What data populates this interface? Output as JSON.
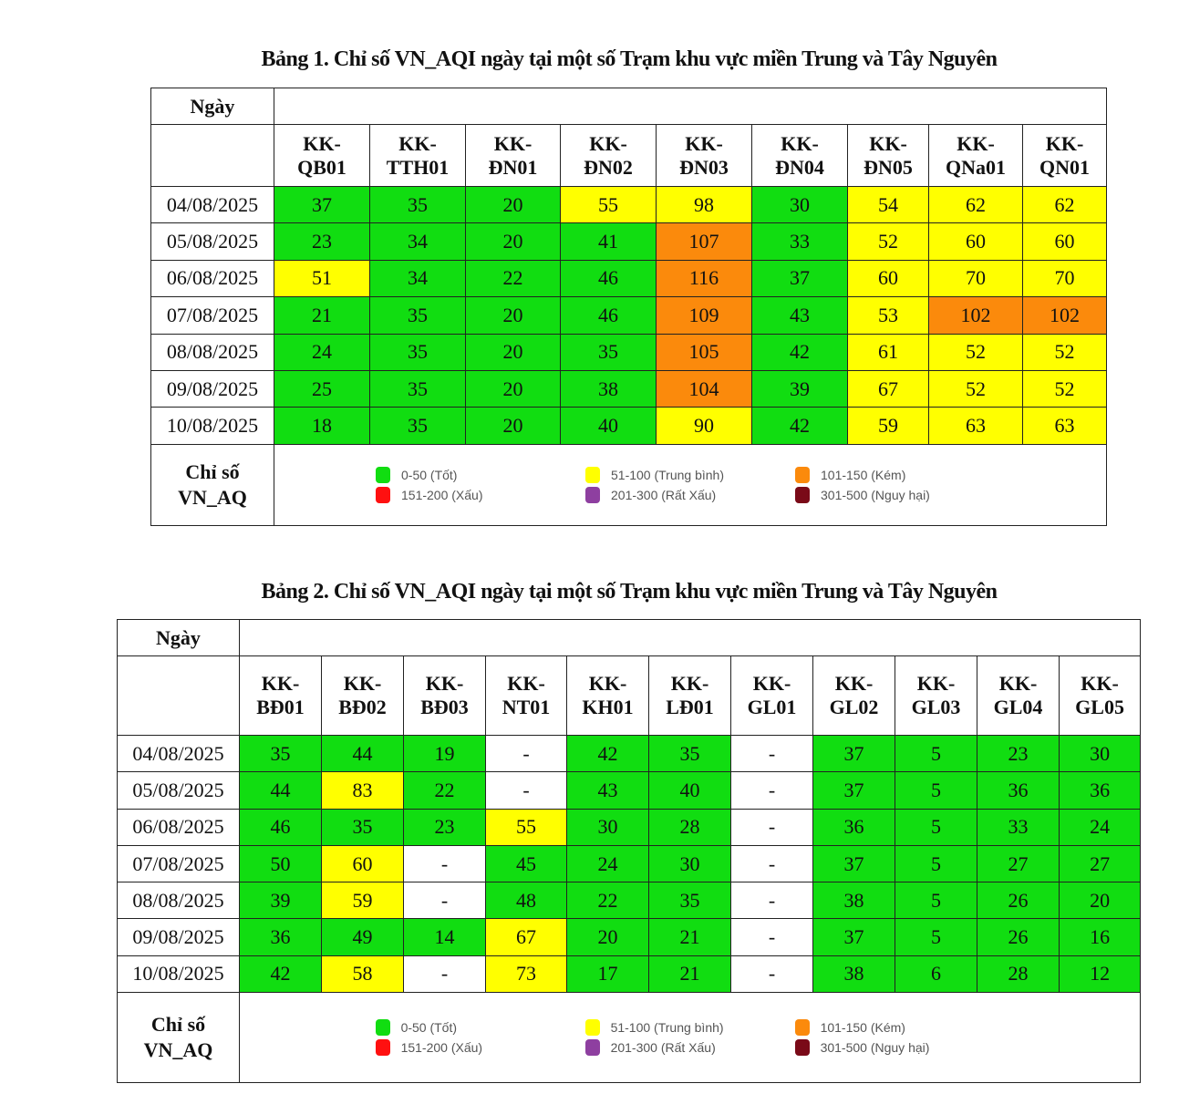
{
  "colors": {
    "good": "#11dd11",
    "moderate": "#ffff00",
    "poor": "#fb8a0c",
    "bad": "#ff1010",
    "very_bad": "#8e3fa0",
    "hazardous": "#7a0a18",
    "na": "#ffffff"
  },
  "legend": [
    {
      "key": "good",
      "label": "0-50 (Tốt)"
    },
    {
      "key": "moderate",
      "label": "51-100 (Trung bình)"
    },
    {
      "key": "poor",
      "label": "101-150 (Kém)"
    },
    {
      "key": "bad",
      "label": "151-200 (Xấu)"
    },
    {
      "key": "very_bad",
      "label": "201-300 (Rất Xấu)"
    },
    {
      "key": "hazardous",
      "label": "301-500 (Nguy hại)"
    }
  ],
  "tables": [
    {
      "title": "Bảng 1. Chỉ số VN_AQI ngày tại một số Trạm khu vực miền Trung và Tây Nguyên",
      "date_header": "Ngày",
      "legend_label_1": "Chỉ số",
      "legend_label_2": "VN_AQ",
      "stations": [
        [
          "KK-",
          "QB01"
        ],
        [
          "KK-",
          "TTH01"
        ],
        [
          "KK-",
          "ĐN01"
        ],
        [
          "KK-",
          "ĐN02"
        ],
        [
          "KK-",
          "ĐN03"
        ],
        [
          "KK-",
          "ĐN04"
        ],
        [
          "KK-",
          "ĐN05"
        ],
        [
          "KK-",
          "QNa01"
        ],
        [
          "KK-",
          "QN01"
        ]
      ],
      "rows": [
        {
          "date": "04/08/2025",
          "values": [
            "37",
            "35",
            "20",
            "55",
            "98",
            "30",
            "54",
            "62",
            "62"
          ]
        },
        {
          "date": "05/08/2025",
          "values": [
            "23",
            "34",
            "20",
            "41",
            "107",
            "33",
            "52",
            "60",
            "60"
          ]
        },
        {
          "date": "06/08/2025",
          "values": [
            "51",
            "34",
            "22",
            "46",
            "116",
            "37",
            "60",
            "70",
            "70"
          ]
        },
        {
          "date": "07/08/2025",
          "values": [
            "21",
            "35",
            "20",
            "46",
            "109",
            "43",
            "53",
            "102",
            "102"
          ]
        },
        {
          "date": "08/08/2025",
          "values": [
            "24",
            "35",
            "20",
            "35",
            "105",
            "42",
            "61",
            "52",
            "52"
          ]
        },
        {
          "date": "09/08/2025",
          "values": [
            "25",
            "35",
            "20",
            "38",
            "104",
            "39",
            "67",
            "52",
            "52"
          ]
        },
        {
          "date": "10/08/2025",
          "values": [
            "18",
            "35",
            "20",
            "40",
            "90",
            "42",
            "59",
            "63",
            "63"
          ]
        }
      ]
    },
    {
      "title": "Bảng 2. Chỉ số VN_AQI ngày tại một số Trạm khu vực miền Trung và Tây Nguyên",
      "date_header": "Ngày",
      "legend_label_1": "Chỉ số",
      "legend_label_2": "VN_AQ",
      "stations": [
        [
          "KK-",
          "BĐ01"
        ],
        [
          "KK-",
          "BĐ02"
        ],
        [
          "KK-",
          "BĐ03"
        ],
        [
          "KK-",
          "NT01"
        ],
        [
          "KK-",
          "KH01"
        ],
        [
          "KK-",
          "LĐ01"
        ],
        [
          "KK-",
          "GL01"
        ],
        [
          "KK-",
          "GL02"
        ],
        [
          "KK-",
          "GL03"
        ],
        [
          "KK-",
          "GL04"
        ],
        [
          "KK-",
          "GL05"
        ]
      ],
      "rows": [
        {
          "date": "04/08/2025",
          "values": [
            "35",
            "44",
            "19",
            "-",
            "42",
            "35",
            "-",
            "37",
            "5",
            "23",
            "30"
          ]
        },
        {
          "date": "05/08/2025",
          "values": [
            "44",
            "83",
            "22",
            "-",
            "43",
            "40",
            "-",
            "37",
            "5",
            "36",
            "36"
          ]
        },
        {
          "date": "06/08/2025",
          "values": [
            "46",
            "35",
            "23",
            "55",
            "30",
            "28",
            "-",
            "36",
            "5",
            "33",
            "24"
          ]
        },
        {
          "date": "07/08/2025",
          "values": [
            "50",
            "60",
            "-",
            "45",
            "24",
            "30",
            "-",
            "37",
            "5",
            "27",
            "27"
          ]
        },
        {
          "date": "08/08/2025",
          "values": [
            "39",
            "59",
            "-",
            "48",
            "22",
            "35",
            "-",
            "38",
            "5",
            "26",
            "20"
          ]
        },
        {
          "date": "09/08/2025",
          "values": [
            "36",
            "49",
            "14",
            "67",
            "20",
            "21",
            "-",
            "37",
            "5",
            "26",
            "16"
          ]
        },
        {
          "date": "10/08/2025",
          "values": [
            "42",
            "58",
            "-",
            "73",
            "17",
            "21",
            "-",
            "38",
            "6",
            "28",
            "12"
          ]
        }
      ]
    }
  ]
}
